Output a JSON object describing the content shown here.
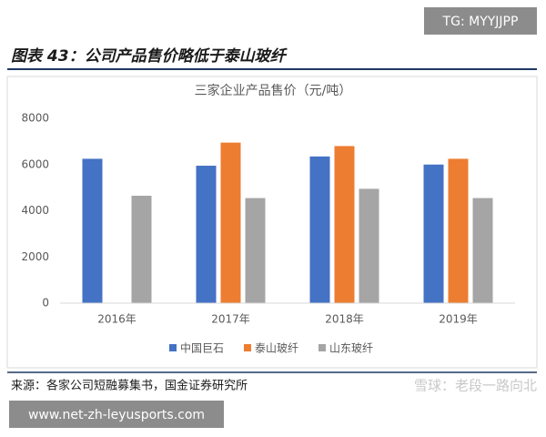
{
  "tag": "TG: MYYJJPP",
  "header": {
    "title": "图表 43：公司产品售价略低于泰山玻纤"
  },
  "chart_data": {
    "type": "bar",
    "title": "三家企业产品售价（元/吨）",
    "categories": [
      "2016年",
      "2017年",
      "2018年",
      "2019年"
    ],
    "series": [
      {
        "name": "中国巨石",
        "color": "#4472c4",
        "values": [
          6250,
          5950,
          6350,
          6000
        ]
      },
      {
        "name": "泰山玻纤",
        "color": "#ed7d31",
        "values": [
          null,
          6950,
          6800,
          6250
        ]
      },
      {
        "name": "山东玻纤",
        "color": "#a5a5a5",
        "values": [
          4650,
          4550,
          4950,
          4550
        ]
      }
    ],
    "ylim": [
      0,
      8000
    ],
    "yticks": [
      0,
      2000,
      4000,
      6000,
      8000
    ],
    "grid": false,
    "legend": "bottom"
  },
  "footer": {
    "source": "来源：各家公司短融募集书，国金证券研究所",
    "watermark": "雪球：老段一路向北"
  },
  "url": "www.net-zh-leyusports.com"
}
